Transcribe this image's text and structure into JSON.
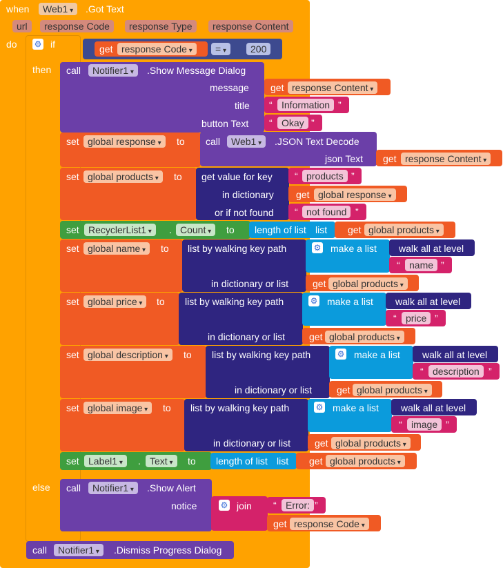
{
  "event": {
    "when": "when",
    "component": "Web1",
    "event_name": ".Got Text",
    "params": [
      "url",
      "responseCode",
      "responseType",
      "responseContent"
    ],
    "params_display": [
      "url",
      "response Code",
      "response Type",
      "response Content"
    ],
    "do": "do"
  },
  "if_block": {
    "if": "if",
    "then": "then",
    "else": "else",
    "get": "get",
    "var": "response Code",
    "op": "=",
    "value": "200"
  },
  "dialog": {
    "call": "call",
    "component": "Notifier1",
    "method": ".Show Message Dialog",
    "message_label": "message",
    "title_label": "title",
    "button_label": "button Text",
    "get": "get",
    "message_var": "response Content",
    "title_value": "Information",
    "button_value": "Okay"
  },
  "set_response": {
    "set": "set",
    "var": "global response",
    "to": "to",
    "call": "call",
    "component": "Web1",
    "method": ".JSON Text Decode",
    "arg_label": "json Text",
    "get": "get",
    "arg_var": "response Content"
  },
  "set_products": {
    "set": "set",
    "var": "global products",
    "to": "to",
    "fn": "get value for key",
    "key": "products",
    "dict_label": "in dictionary",
    "get": "get",
    "dict_var": "global response",
    "nf_label": "or if not found",
    "nf_value": "not found"
  },
  "set_count": {
    "set": "set",
    "component": "RecyclerList1",
    "dot": ".",
    "property": "Count",
    "to": "to",
    "fn": "length of list",
    "list_label": "list",
    "get": "get",
    "list_var": "global products"
  },
  "walk_blocks": [
    {
      "set": "set",
      "var": "global name",
      "to": "to",
      "fn": "list by walking key path",
      "make": "make a list",
      "walk": "walk all at level",
      "key": "name",
      "dict_label": "in dictionary or list",
      "get": "get",
      "dict_var": "global products"
    },
    {
      "set": "set",
      "var": "global price",
      "to": "to",
      "fn": "list by walking key path",
      "make": "make a list",
      "walk": "walk all at level",
      "key": "price",
      "dict_label": "in dictionary or list",
      "get": "get",
      "dict_var": "global products"
    },
    {
      "set": "set",
      "var": "global description",
      "to": "to",
      "fn": "list by walking key path",
      "make": "make a list",
      "walk": "walk all at level",
      "key": "description",
      "dict_label": "in dictionary or list",
      "get": "get",
      "dict_var": "global products"
    },
    {
      "set": "set",
      "var": "global image",
      "to": "to",
      "fn": "list by walking key path",
      "make": "make a list",
      "walk": "walk all at level",
      "key": "image",
      "dict_label": "in dictionary or list",
      "get": "get",
      "dict_var": "global products"
    }
  ],
  "set_label": {
    "set": "set",
    "component": "Label1",
    "dot": ".",
    "property": "Text",
    "to": "to",
    "fn": "length of list",
    "list_label": "list",
    "get": "get",
    "list_var": "global products"
  },
  "alert": {
    "call": "call",
    "component": "Notifier1",
    "method": ".Show Alert",
    "notice_label": "notice",
    "join": "join",
    "text": "Error:",
    "get": "get",
    "var": "response Code"
  },
  "dismiss": {
    "call": "call",
    "component": "Notifier1",
    "method": ".Dismiss Progress Dialog"
  },
  "colors": {
    "event": "#ffa200",
    "control": "#ffa200",
    "variable_get": "#f05a24",
    "component_call": "#6b3fa8",
    "text": "#d4226a",
    "component_set": "#3f9e3f",
    "list": "#0b9bdc",
    "dictionary": "#2f2580",
    "math": "#3d4a8f"
  }
}
